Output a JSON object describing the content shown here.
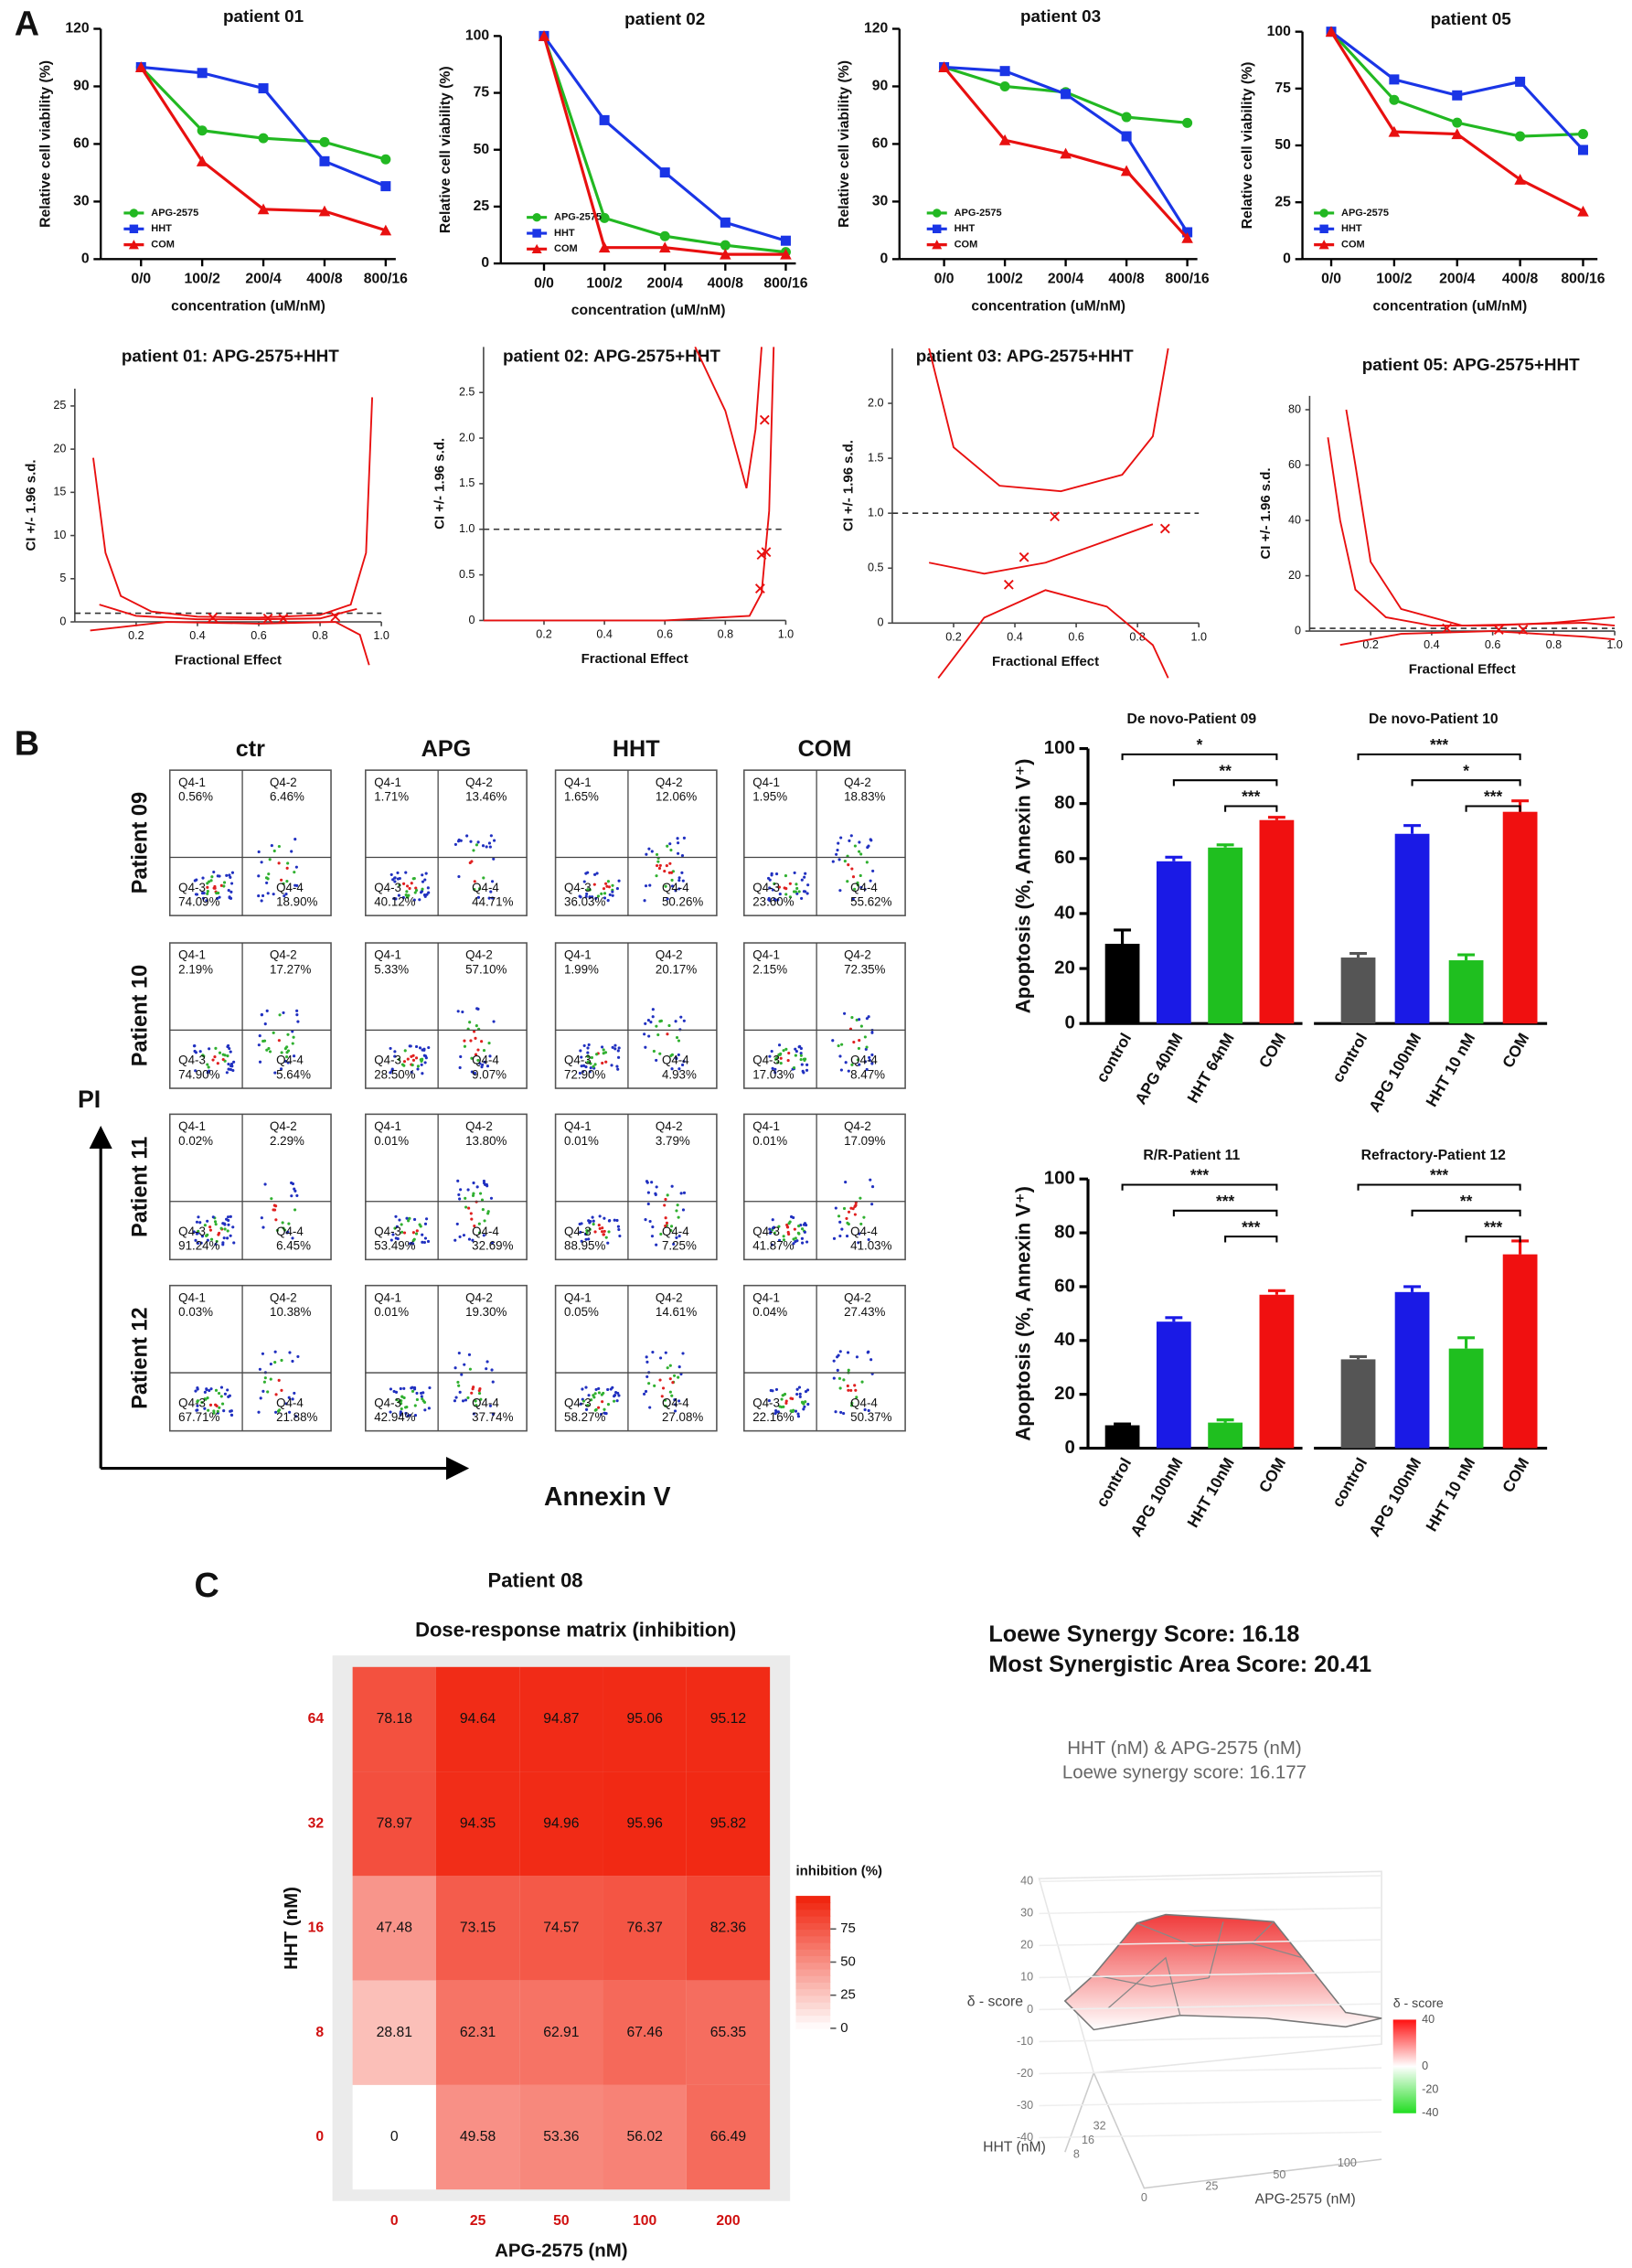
{
  "panel_labels": [
    "A",
    "B",
    "C"
  ],
  "chart_data": [
    {
      "type": "line",
      "title": "patient 01",
      "xlabel": "concentration (uM/nM)",
      "ylabel": "Relative cell viability (%)",
      "categories": [
        "0/0",
        "100/2",
        "200/4",
        "400/8",
        "800/16"
      ],
      "ylim": [
        0,
        120
      ],
      "yticks": [
        0,
        30,
        60,
        90,
        120
      ],
      "series": [
        {
          "name": "APG-2575",
          "color": "#22b822",
          "marker": "circle",
          "values": [
            100,
            67,
            63,
            61,
            52
          ]
        },
        {
          "name": "HHT",
          "color": "#1a35e6",
          "marker": "square",
          "values": [
            100,
            97,
            89,
            51,
            38
          ]
        },
        {
          "name": "COM",
          "color": "#e81010",
          "marker": "triangle",
          "values": [
            100,
            51,
            26,
            25,
            15
          ]
        }
      ]
    },
    {
      "type": "line",
      "title": "patient 02",
      "xlabel": "concentration (uM/nM)",
      "ylabel": "Relative cell viability (%)",
      "categories": [
        "0/0",
        "100/2",
        "200/4",
        "400/8",
        "800/16"
      ],
      "ylim": [
        0,
        100
      ],
      "yticks": [
        0,
        25,
        50,
        75,
        100
      ],
      "series": [
        {
          "name": "APG-2575",
          "color": "#22b822",
          "marker": "circle",
          "values": [
            100,
            20,
            12,
            8,
            5
          ]
        },
        {
          "name": "HHT",
          "color": "#1a35e6",
          "marker": "square",
          "values": [
            100,
            63,
            40,
            18,
            10
          ]
        },
        {
          "name": "COM",
          "color": "#e81010",
          "marker": "triangle",
          "values": [
            100,
            7,
            7,
            4,
            4
          ]
        }
      ]
    },
    {
      "type": "line",
      "title": "patient 03",
      "xlabel": "concentration (uM/nM)",
      "ylabel": "Relative cell viability (%)",
      "categories": [
        "0/0",
        "100/2",
        "200/4",
        "400/8",
        "800/16"
      ],
      "ylim": [
        0,
        120
      ],
      "yticks": [
        0,
        30,
        60,
        90,
        120
      ],
      "series": [
        {
          "name": "APG-2575",
          "color": "#22b822",
          "marker": "circle",
          "values": [
            100,
            90,
            87,
            74,
            71
          ]
        },
        {
          "name": "HHT",
          "color": "#1a35e6",
          "marker": "square",
          "values": [
            100,
            98,
            86,
            64,
            14
          ]
        },
        {
          "name": "COM",
          "color": "#e81010",
          "marker": "triangle",
          "values": [
            100,
            62,
            55,
            46,
            11
          ]
        }
      ]
    },
    {
      "type": "line",
      "title": "patient 05",
      "xlabel": "concentration (uM/nM)",
      "ylabel": "Relative cell viability (%)",
      "categories": [
        "0/0",
        "100/2",
        "200/4",
        "400/8",
        "800/16"
      ],
      "ylim": [
        0,
        100
      ],
      "yticks": [
        0,
        25,
        50,
        75,
        100
      ],
      "series": [
        {
          "name": "APG-2575",
          "color": "#22b822",
          "marker": "circle",
          "values": [
            100,
            70,
            60,
            54,
            55
          ]
        },
        {
          "name": "HHT",
          "color": "#1a35e6",
          "marker": "square",
          "values": [
            100,
            79,
            72,
            78,
            48
          ]
        },
        {
          "name": "COM",
          "color": "#e81010",
          "marker": "triangle",
          "values": [
            100,
            56,
            55,
            35,
            21
          ]
        }
      ]
    },
    {
      "type": "ci",
      "title": "patient 01: APG-2575+HHT",
      "xlabel": "Fractional Effect",
      "ylabel": "CI +/- 1.96 s.d.",
      "xlim": [
        0,
        1
      ],
      "xticks": [
        0.2,
        0.4,
        0.6,
        0.8,
        {
          "value": 1,
          "label": "1.0"
        }
      ],
      "ylim": [
        -5,
        27
      ],
      "yticks": [
        0,
        5,
        10,
        15,
        20,
        25
      ],
      "reference_line": 1,
      "color": "#e81010",
      "curves": [
        {
          "x": [
            0.06,
            0.1,
            0.15,
            0.25,
            0.4,
            0.6,
            0.8,
            0.9,
            0.95,
            0.97
          ],
          "values": [
            19,
            8,
            3,
            1.2,
            0.6,
            0.5,
            0.8,
            2,
            8,
            26
          ]
        },
        {
          "x": [
            0.08,
            0.2,
            0.4,
            0.6,
            0.8,
            0.92
          ],
          "values": [
            2,
            0.7,
            0.3,
            0.3,
            0.4,
            1.5
          ]
        },
        {
          "x": [
            0.05,
            0.3,
            0.6,
            0.85,
            0.93,
            0.96
          ],
          "values": [
            -1,
            0,
            -0.2,
            0,
            -1.5,
            -5
          ]
        }
      ],
      "points": {
        "x": [
          0.45,
          0.63,
          0.68,
          0.85
        ],
        "values": [
          0.5,
          0.4,
          0.4,
          0.6
        ]
      }
    },
    {
      "type": "ci",
      "title": "patient 02: APG-2575+HHT",
      "xlabel": "Fractional Effect",
      "ylabel": "CI +/- 1.96 s.d.",
      "xlim": [
        0,
        1
      ],
      "xticks": [
        0.2,
        0.4,
        0.6,
        0.8,
        {
          "value": 1,
          "label": "1.0"
        }
      ],
      "ylim": [
        0,
        3
      ],
      "yticks": [
        0,
        0.5,
        {
          "value": 1,
          "label": "1.0"
        },
        1.5,
        {
          "value": 2,
          "label": "2.0"
        },
        2.5
      ],
      "reference_line": 1,
      "color": "#e81010",
      "curves": [
        {
          "x": [
            0.7,
            0.8,
            0.87,
            0.9,
            0.92
          ],
          "values": [
            3,
            2.3,
            1.45,
            2.1,
            3
          ]
        },
        {
          "x": [
            0,
            0.6,
            0.88,
            0.92,
            0.945,
            0.96
          ],
          "values": [
            0,
            0,
            0.05,
            0.3,
            1.2,
            3
          ]
        }
      ],
      "points": {
        "x": [
          0.93,
          0.92,
          0.935,
          0.915
        ],
        "values": [
          2.2,
          0.72,
          0.75,
          0.35
        ]
      }
    },
    {
      "type": "ci",
      "title": "patient 03: APG-2575+HHT",
      "xlabel": "Fractional Effect",
      "ylabel": "CI +/- 1.96 s.d.",
      "xlim": [
        0,
        1
      ],
      "xticks": [
        0.2,
        0.4,
        0.6,
        0.8,
        {
          "value": 1,
          "label": "1.0"
        }
      ],
      "ylim": [
        -0.5,
        2.5
      ],
      "yticks": [
        0,
        0.5,
        {
          "value": 1,
          "label": "1.0"
        },
        1.5,
        {
          "value": 2,
          "label": "2.0"
        }
      ],
      "reference_line": 1,
      "color": "#e81010",
      "curves": [
        {
          "x": [
            0.12,
            0.2,
            0.35,
            0.55,
            0.75,
            0.85,
            0.9
          ],
          "values": [
            2.5,
            1.6,
            1.25,
            1.2,
            1.35,
            1.7,
            2.5
          ]
        },
        {
          "x": [
            0.12,
            0.3,
            0.5,
            0.7,
            0.85
          ],
          "values": [
            0.55,
            0.45,
            0.55,
            0.75,
            0.9
          ]
        },
        {
          "x": [
            0.15,
            0.3,
            0.5,
            0.7,
            0.85,
            0.9
          ],
          "values": [
            -0.5,
            0.05,
            0.3,
            0.15,
            -0.2,
            -0.5
          ]
        }
      ],
      "points": {
        "x": [
          0.38,
          0.43,
          0.53,
          0.89
        ],
        "values": [
          0.35,
          0.6,
          0.97,
          0.86
        ]
      }
    },
    {
      "type": "ci",
      "title": "patient 05: APG-2575+HHT",
      "xlabel": "Fractional Effect",
      "ylabel": "CI +/- 1.96 s.d.",
      "xlim": [
        0,
        1
      ],
      "xticks": [
        0.2,
        0.4,
        0.6,
        0.8,
        {
          "value": 1,
          "label": "1.0"
        }
      ],
      "ylim": [
        -5,
        85
      ],
      "yticks": [
        0,
        20,
        40,
        60,
        80
      ],
      "reference_line": 1,
      "color": "#e81010",
      "curves": [
        {
          "x": [
            0.06,
            0.1,
            0.15,
            0.25,
            0.4,
            0.6,
            0.8,
            1.0
          ],
          "values": [
            70,
            40,
            15,
            5,
            2,
            2,
            3,
            5
          ]
        },
        {
          "x": [
            0.12,
            0.15,
            0.2,
            0.3,
            0.5,
            0.9,
            1.0
          ],
          "values": [
            80,
            60,
            25,
            8,
            2,
            3,
            2
          ]
        },
        {
          "x": [
            0.1,
            0.3,
            0.6,
            0.9,
            1.0
          ],
          "values": [
            -5,
            -1,
            0,
            -2,
            -3
          ]
        }
      ],
      "points": {
        "x": [
          0.45,
          0.62,
          0.7
        ],
        "values": [
          1,
          0.5,
          0.5
        ]
      }
    },
    {
      "type": "bar",
      "title": "De novo-Patient 09",
      "ylabel": "Apoptosis (%, Annexin V⁺)",
      "ylim": [
        0,
        100
      ],
      "yticks": [
        0,
        20,
        40,
        60,
        80,
        100
      ],
      "categories": [
        "control",
        "APG 40nM",
        "HHT 64nM",
        "COM"
      ],
      "values": [
        29,
        59,
        64,
        74
      ],
      "errors": [
        5,
        1.5,
        1,
        1
      ],
      "colors": [
        "#000000",
        "#1a1ae6",
        "#1fbf1f",
        "#f01010"
      ],
      "significance": [
        {
          "label": "*",
          "between": [
            0,
            3
          ]
        },
        {
          "label": "**",
          "between": [
            1,
            3
          ]
        },
        {
          "label": "***",
          "between": [
            2,
            3
          ]
        }
      ]
    },
    {
      "type": "bar",
      "title": "De novo-Patient 10",
      "ylim": [
        0,
        100
      ],
      "categories": [
        "control",
        "APG 100nM",
        "HHT 10 nM",
        "COM"
      ],
      "values": [
        24,
        69,
        23,
        77
      ],
      "errors": [
        1.5,
        3,
        2,
        4
      ],
      "colors": [
        "#555555",
        "#1a1ae6",
        "#1fbf1f",
        "#f01010"
      ],
      "significance": [
        {
          "label": "***",
          "between": [
            0,
            3
          ]
        },
        {
          "label": "*",
          "between": [
            1,
            3
          ]
        },
        {
          "label": "***",
          "between": [
            2,
            3
          ]
        }
      ]
    },
    {
      "type": "bar",
      "title": "R/R-Patient 11",
      "ylabel": "Apoptosis (%, Annexin V⁺)",
      "ylim": [
        0,
        100
      ],
      "yticks": [
        0,
        20,
        40,
        60,
        80,
        100
      ],
      "categories": [
        "control",
        "APG 100nM",
        "HHT 10nM",
        "COM"
      ],
      "values": [
        8.5,
        47,
        9.5,
        57
      ],
      "errors": [
        0.5,
        1.5,
        1,
        1.5
      ],
      "colors": [
        "#000000",
        "#1a1ae6",
        "#1fbf1f",
        "#f01010"
      ],
      "significance": [
        {
          "label": "***",
          "between": [
            0,
            3
          ]
        },
        {
          "label": "***",
          "between": [
            1,
            3
          ]
        },
        {
          "label": "***",
          "between": [
            2,
            3
          ]
        }
      ]
    },
    {
      "type": "bar",
      "title": "Refractory-Patient 12",
      "ylim": [
        0,
        100
      ],
      "categories": [
        "control",
        "APG 100nM",
        "HHT 10 nM",
        "COM"
      ],
      "values": [
        33,
        58,
        37,
        72
      ],
      "errors": [
        1,
        2,
        4,
        5
      ],
      "colors": [
        "#555555",
        "#1a1ae6",
        "#1fbf1f",
        "#f01010"
      ],
      "significance": [
        {
          "label": "***",
          "between": [
            0,
            3
          ]
        },
        {
          "label": "**",
          "between": [
            1,
            3
          ]
        },
        {
          "label": "***",
          "between": [
            2,
            3
          ]
        }
      ]
    },
    {
      "type": "heatmap",
      "title": "Patient 08",
      "subtitle": "Dose-response matrix (inhibition)",
      "xlabel": "APG-2575 (nM)",
      "ylabel": "HHT (nM)",
      "x_categories": [
        "0",
        "25",
        "50",
        "100",
        "200"
      ],
      "y_categories": [
        "64",
        "32",
        "16",
        "8",
        "0"
      ],
      "values": [
        [
          78.18,
          94.64,
          94.87,
          95.06,
          95.12
        ],
        [
          78.97,
          94.35,
          94.96,
          95.96,
          95.82
        ],
        [
          47.48,
          73.15,
          74.57,
          76.37,
          82.36
        ],
        [
          28.81,
          62.31,
          62.91,
          67.46,
          65.35
        ],
        [
          0,
          49.58,
          53.36,
          56.02,
          66.49
        ]
      ],
      "colorbar_label": "inhibition (%)",
      "clim": [
        0,
        100
      ],
      "cticks": [
        0,
        25,
        50,
        75
      ],
      "color": "#f0200a"
    }
  ],
  "flow_cytometry": {
    "columns": [
      "ctr",
      "APG",
      "HHT",
      "COM"
    ],
    "quadrant_names": [
      "Q4-1",
      "Q4-2",
      "Q4-3",
      "Q4-4"
    ],
    "y_axis": "PI",
    "x_axis": "Annexin V",
    "rows": [
      {
        "label": "Patient 09",
        "plots": [
          [
            "0.56%",
            "6.46%",
            "74.09%",
            "18.90%"
          ],
          [
            "1.71%",
            "13.46%",
            "40.12%",
            "44.71%"
          ],
          [
            "1.65%",
            "12.06%",
            "36.03%",
            "50.26%"
          ],
          [
            "1.95%",
            "18.83%",
            "23.60%",
            "55.62%"
          ]
        ]
      },
      {
        "label": "Patient 10",
        "plots": [
          [
            "2.19%",
            "17.27%",
            "74.90%",
            "5.64%"
          ],
          [
            "5.33%",
            "57.10%",
            "28.50%",
            "9.07%"
          ],
          [
            "1.99%",
            "20.17%",
            "72.90%",
            "4.93%"
          ],
          [
            "2.15%",
            "72.35%",
            "17.03%",
            "8.47%"
          ]
        ]
      },
      {
        "label": "Patient 11",
        "plots": [
          [
            "0.02%",
            "2.29%",
            "91.24%",
            "6.45%"
          ],
          [
            "0.01%",
            "13.80%",
            "53.49%",
            "32.69%"
          ],
          [
            "0.01%",
            "3.79%",
            "88.95%",
            "7.25%"
          ],
          [
            "0.01%",
            "17.09%",
            "41.87%",
            "41.03%"
          ]
        ]
      },
      {
        "label": "Patient 12",
        "plots": [
          [
            "0.03%",
            "10.38%",
            "67.71%",
            "21.88%"
          ],
          [
            "0.01%",
            "19.30%",
            "42.94%",
            "37.74%"
          ],
          [
            "0.05%",
            "14.61%",
            "58.27%",
            "27.08%"
          ],
          [
            "0.04%",
            "27.43%",
            "22.16%",
            "50.37%"
          ]
        ]
      }
    ]
  },
  "synergy": {
    "score": "Loewe Synergy Score: 16.18",
    "area_score": "Most Synergistic Area Score: 20.41",
    "plot_title": "HHT (nM) & APG-2575 (nM)",
    "plot_subtitle": "Loewe synergy score: 16.177",
    "z_label": "δ - score",
    "zlim": [
      -40,
      40
    ],
    "zticks": [
      40,
      30,
      20,
      10,
      0,
      -10,
      -20,
      -30,
      -40
    ],
    "x_label": "APG-2575 (nM)",
    "xticks": [
      0,
      25,
      50,
      100
    ],
    "y_label": "HHT (nM)",
    "yticks": [
      8,
      16,
      32
    ],
    "colorbar_label": "δ - score",
    "clim": [
      -40,
      40
    ],
    "cticks": [
      40,
      0,
      -20,
      -40
    ]
  }
}
